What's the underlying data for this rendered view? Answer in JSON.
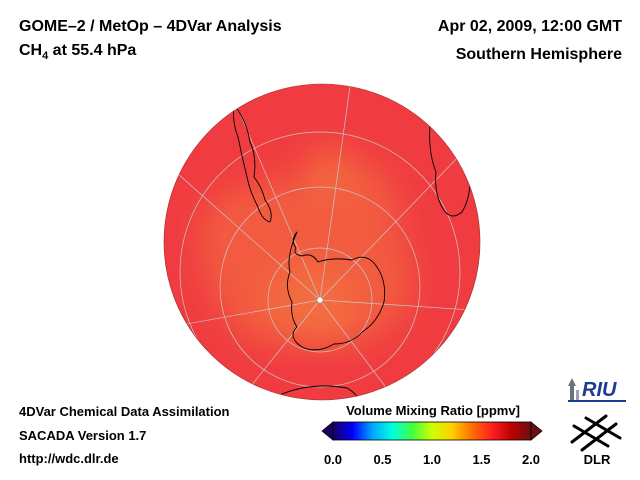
{
  "header": {
    "title_main": "GOME–2 / MetOp – 4DVar Analysis",
    "species": "CH",
    "species_sub": "4",
    "level": " at 55.4 hPa",
    "datetime": "Apr 02, 2009, 12:00 GMT",
    "region": "Southern Hemisphere"
  },
  "footer": {
    "assimilation": "4DVar Chemical Data Assimilation",
    "version": "SACADA Version 1.7",
    "url": "http://wdc.dlr.de"
  },
  "colorbar": {
    "title": "Volume Mixing Ratio [ppmv]",
    "min": 0.0,
    "max": 2.0,
    "ticks": [
      "0.0",
      "0.5",
      "1.0",
      "1.5",
      "2.0"
    ],
    "colors": [
      "#1a0060",
      "#0000ff",
      "#00a8ff",
      "#00ffe0",
      "#40ff40",
      "#d0ff00",
      "#ffd000",
      "#ff7000",
      "#ff2020",
      "#c00000",
      "#6a1010"
    ]
  },
  "map": {
    "projection": "orthographic, south polar",
    "dominant_value": 1.75,
    "ocean_color": "#f03c40",
    "lowvalue_color": "#f4743e",
    "coast_color": "#000000",
    "grid_color": "#c8c8c8"
  },
  "logos": {
    "riu_text": "RIU",
    "dlr_text": "DLR"
  }
}
